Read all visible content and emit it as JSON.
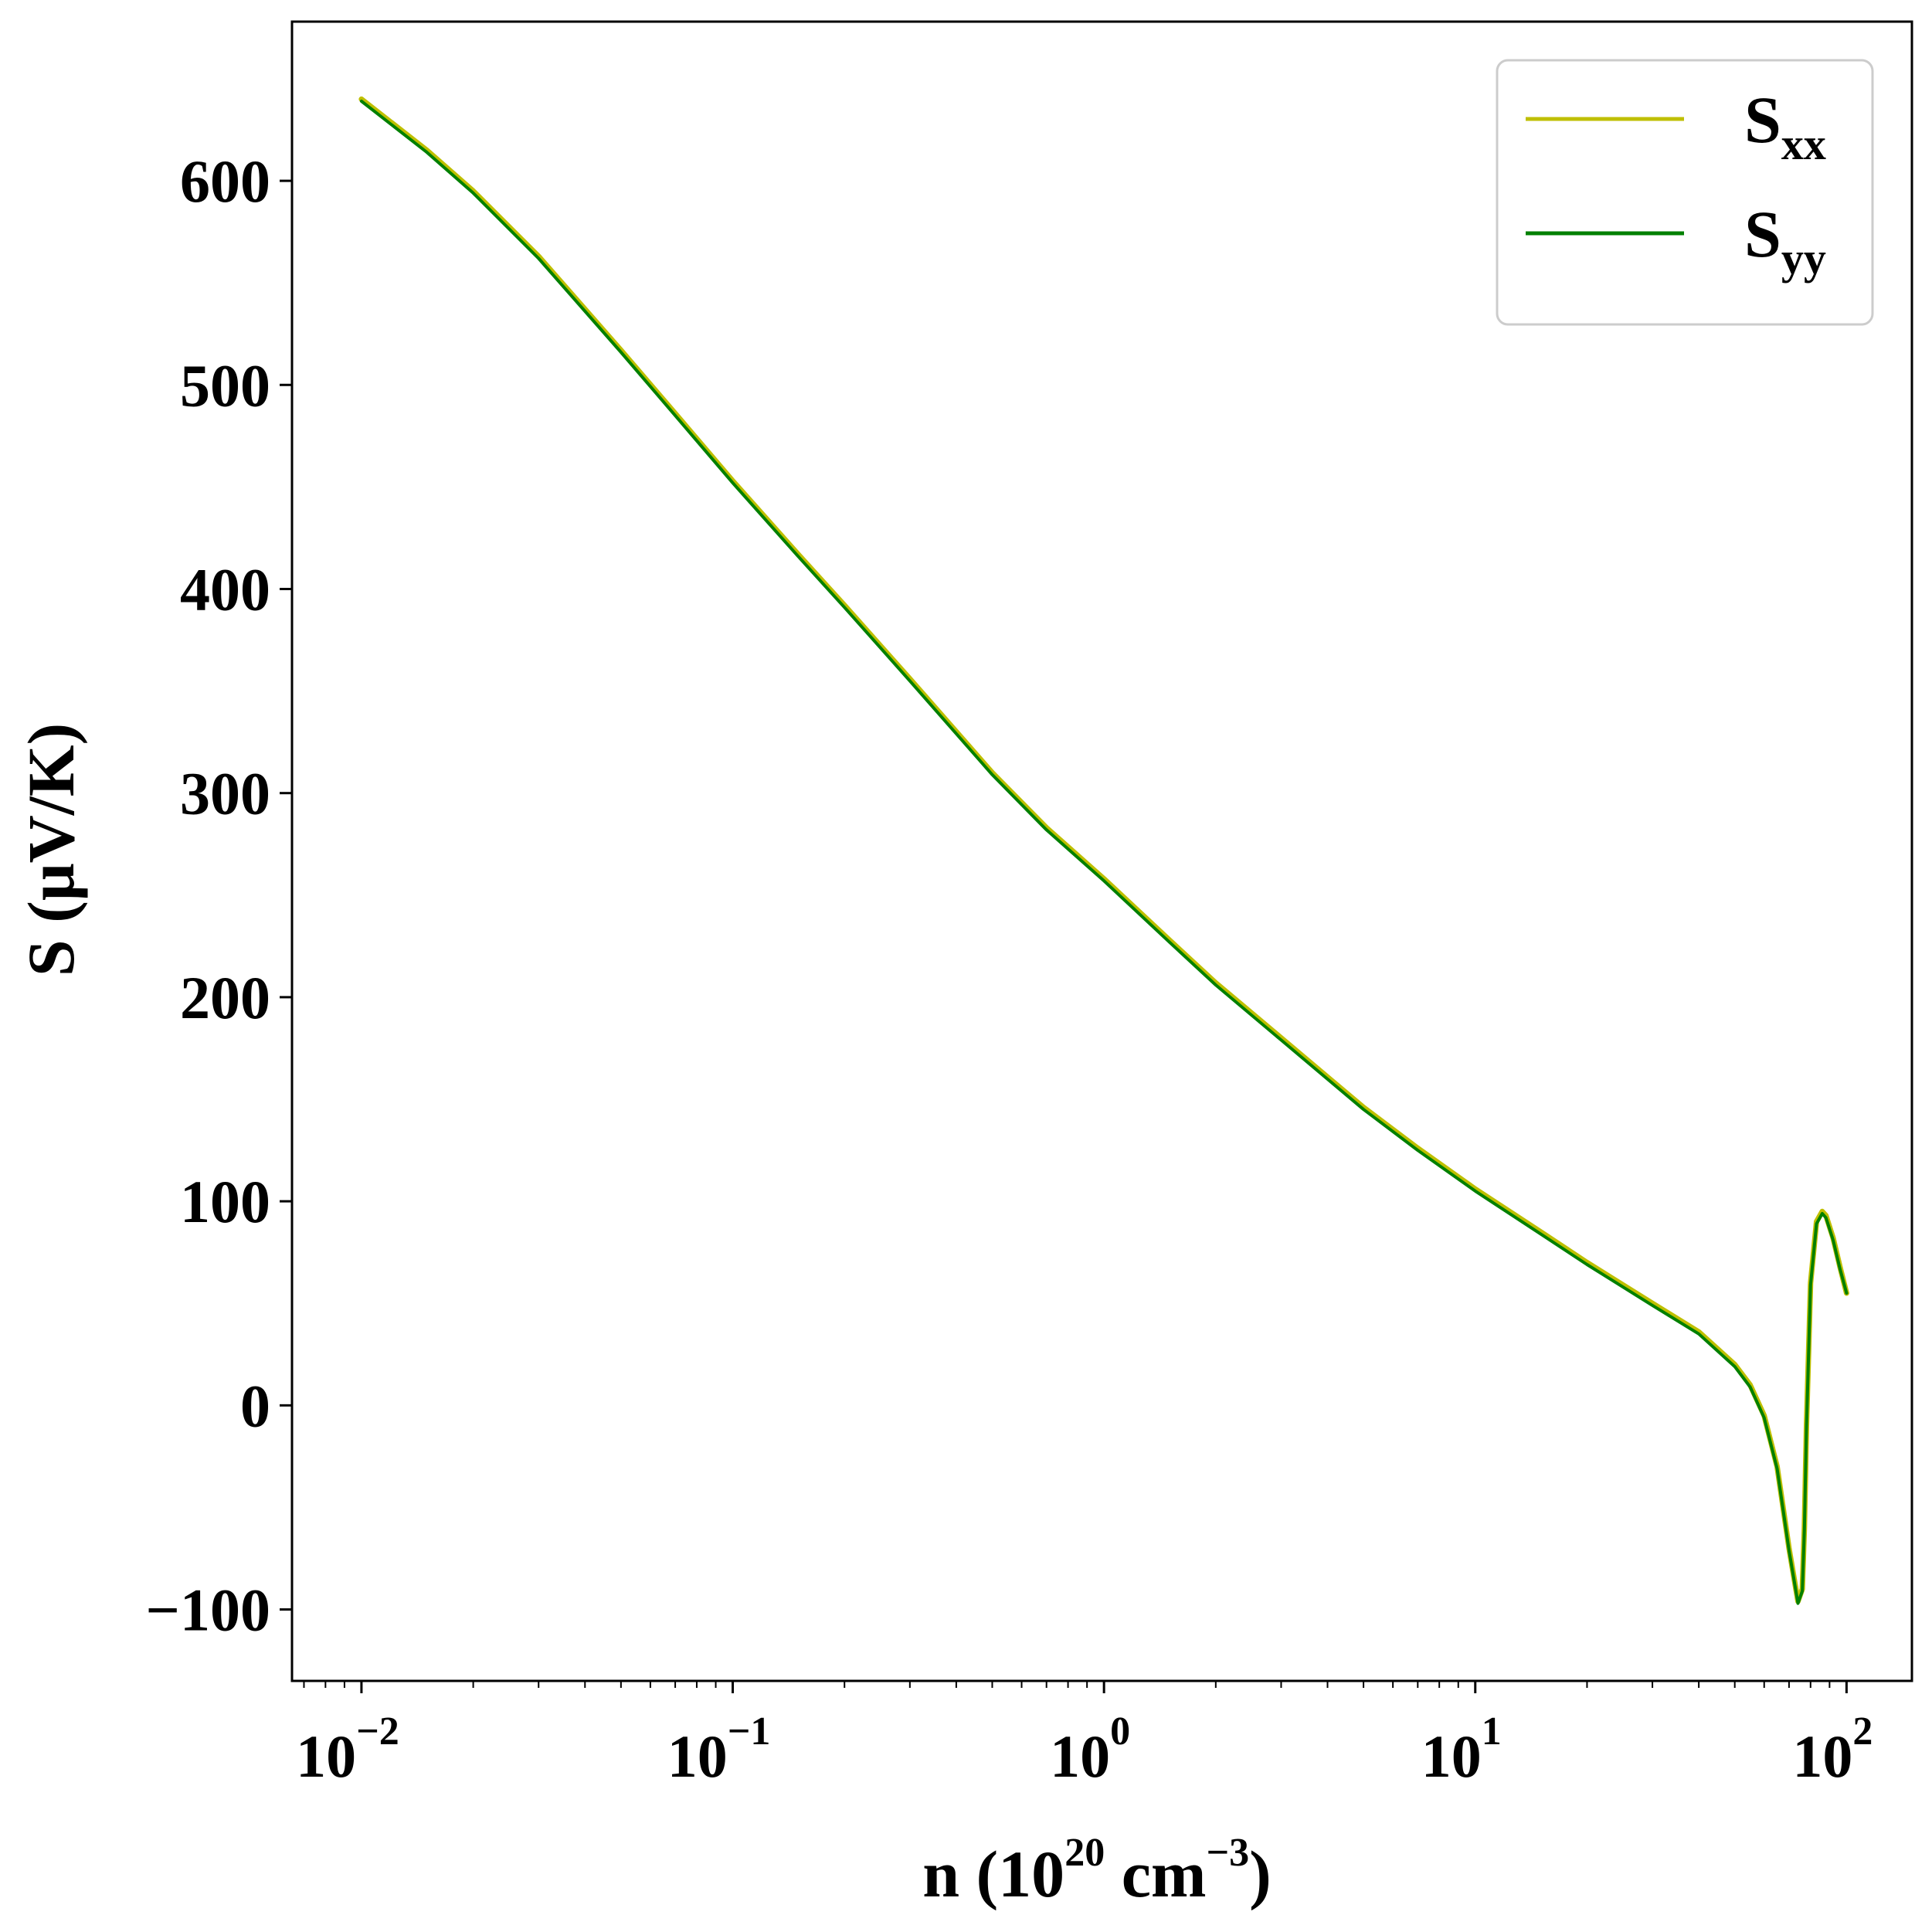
{
  "chart_data": {
    "type": "line",
    "xscale": "log",
    "xlim": [
      0.0065,
      150
    ],
    "ylim": [
      -135,
      678
    ],
    "grid": false,
    "legend_position": "top-right",
    "xlabel": {
      "main": "n (10",
      "sup1": "20",
      "mid": " cm",
      "sup2": "−3",
      "end": ")"
    },
    "ylabel": "S (μV/K)",
    "x_ticks": [
      {
        "value": 0.01,
        "base": "10",
        "exp": "−2"
      },
      {
        "value": 0.1,
        "base": "10",
        "exp": "−1"
      },
      {
        "value": 1,
        "base": "10",
        "exp": "0"
      },
      {
        "value": 10,
        "base": "10",
        "exp": "1"
      },
      {
        "value": 100,
        "base": "10",
        "exp": "2"
      }
    ],
    "y_ticks": [
      {
        "value": -100,
        "label": "−100"
      },
      {
        "value": 0,
        "label": "0"
      },
      {
        "value": 100,
        "label": "100"
      },
      {
        "value": 200,
        "label": "200"
      },
      {
        "value": 300,
        "label": "300"
      },
      {
        "value": 400,
        "label": "400"
      },
      {
        "value": 500,
        "label": "500"
      },
      {
        "value": 600,
        "label": "600"
      }
    ],
    "series": [
      {
        "name": "S",
        "name_sub": "xx",
        "color": "#bfbf00",
        "x": [
          0.01,
          0.015,
          0.02,
          0.03,
          0.05,
          0.07,
          0.1,
          0.15,
          0.2,
          0.3,
          0.5,
          0.7,
          1,
          1.5,
          2,
          3,
          5,
          7,
          10,
          15,
          20,
          30,
          40,
          50,
          55,
          60,
          65,
          70,
          74,
          76,
          77,
          78,
          80,
          83,
          86,
          88,
          92,
          96,
          100
        ],
        "y": [
          640,
          615,
          595,
          563,
          517,
          486,
          453,
          417,
          392,
          356,
          310,
          283,
          258,
          228,
          207,
          180,
          146,
          126,
          106,
          85,
          70,
          50,
          36,
          20,
          10,
          -5,
          -30,
          -70,
          -96,
          -90,
          -60,
          -10,
          60,
          90,
          95,
          93,
          82,
          68,
          55
        ]
      },
      {
        "name": "S",
        "name_sub": "yy",
        "color": "#008000",
        "x": [
          0.01,
          0.015,
          0.02,
          0.03,
          0.05,
          0.07,
          0.1,
          0.15,
          0.2,
          0.3,
          0.5,
          0.7,
          1,
          1.5,
          2,
          3,
          5,
          7,
          10,
          15,
          20,
          30,
          40,
          50,
          55,
          60,
          65,
          70,
          74,
          76,
          77,
          78,
          80,
          83,
          86,
          88,
          92,
          96,
          100
        ],
        "y": [
          639,
          614,
          594,
          562,
          516,
          485,
          452,
          416,
          391,
          355,
          309,
          282,
          257,
          227,
          206,
          179,
          145,
          125,
          105,
          84,
          69,
          49,
          35,
          19,
          9,
          -6,
          -31,
          -71,
          -97,
          -91,
          -61,
          -11,
          59,
          89,
          94,
          92,
          81,
          67,
          55
        ]
      }
    ]
  }
}
